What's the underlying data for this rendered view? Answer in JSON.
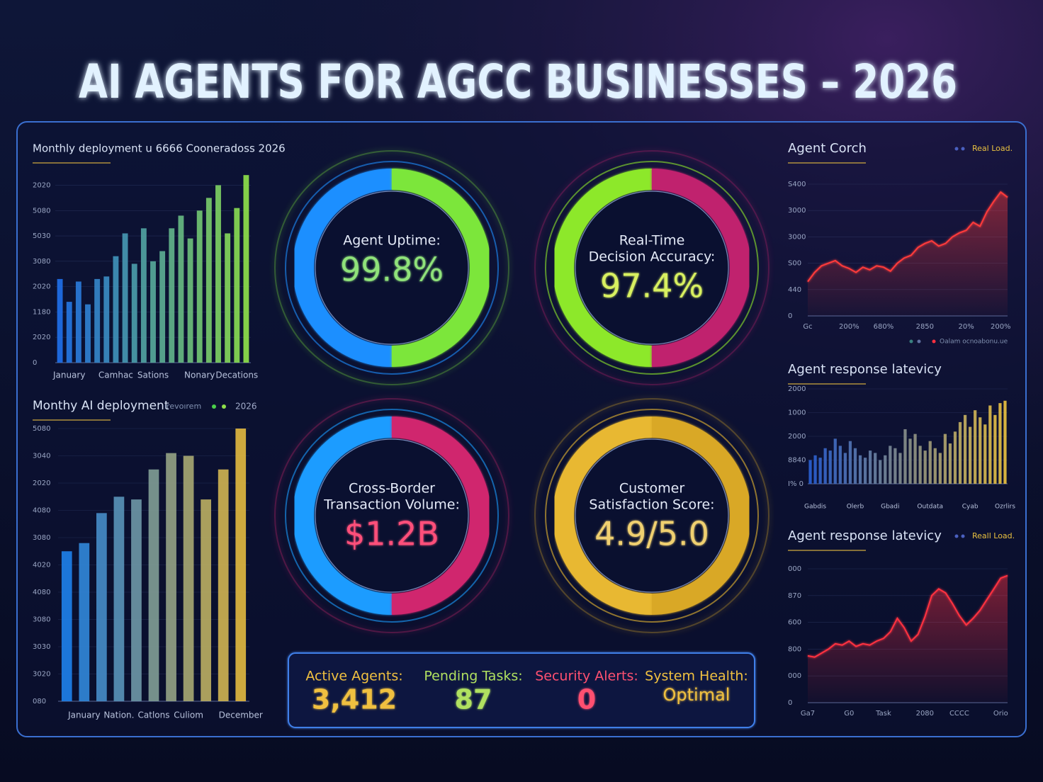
{
  "title": "AI AGENTS FOR AGCC BUSINESSES – 2026",
  "chart_data": [
    {
      "type": "bar",
      "title": "Monthly deployment u 6666 Cooneradoss 2026",
      "categories": [
        null,
        "January",
        null,
        null,
        null,
        null,
        "Camhac",
        null,
        null,
        null,
        "Sations",
        null,
        null,
        null,
        null,
        "Nonary",
        null,
        null,
        null,
        "Decations",
        null
      ],
      "values": [
        3.3,
        2.4,
        3.2,
        2.3,
        3.3,
        3.4,
        4.2,
        5.1,
        3.9,
        5.3,
        4.0,
        4.4,
        5.3,
        5.8,
        4.9,
        6.0,
        6.5,
        7.0,
        5.1,
        6.1,
        7.4
      ],
      "gradient": [
        "#1f6fe8",
        "#8ee04a"
      ],
      "ylim": [
        0,
        7.6
      ],
      "yticks": [
        0,
        {
          "value": 1,
          "label": "2020"
        },
        {
          "value": 2,
          "label": "1180"
        },
        {
          "value": 3,
          "label": "2020"
        },
        {
          "value": 4,
          "label": "3080"
        },
        {
          "value": 5,
          "label": "5030"
        },
        {
          "value": 6,
          "label": "5080"
        },
        {
          "value": 7,
          "label": "2020"
        }
      ]
    },
    {
      "type": "bar",
      "title": "Monthy AI deployment",
      "subtitle": "ırevoırem",
      "legend_label": "2026",
      "categories": [
        null,
        "January",
        null,
        "Nation.",
        null,
        "Catlons",
        null,
        "Culiom",
        null,
        null,
        "December"
      ],
      "values": [
        5.5,
        5.8,
        6.9,
        7.5,
        7.4,
        8.5,
        9.1,
        9.0,
        7.4,
        8.5,
        10.0
      ],
      "gradient": [
        "#1e7fe8",
        "#e0b640"
      ],
      "ylim": [
        0,
        10
      ],
      "yticks": [
        {
          "value": 0,
          "label": "080"
        },
        {
          "value": 1,
          "label": "3020"
        },
        {
          "value": 2,
          "label": "3030"
        },
        {
          "value": 3,
          "label": "3080"
        },
        {
          "value": 4,
          "label": "4080"
        },
        {
          "value": 5,
          "label": "4020"
        },
        {
          "value": 6,
          "label": "3080"
        },
        {
          "value": 7,
          "label": "4080"
        },
        {
          "value": 8,
          "label": "2020"
        },
        {
          "value": 9,
          "label": "3040"
        },
        {
          "value": 10,
          "label": "5080"
        }
      ]
    },
    {
      "type": "line",
      "title": "Agent Corch",
      "caption": "Oalam ocnoabonu.ue",
      "x": [
        0,
        1,
        2,
        3,
        4,
        5,
        6,
        7,
        8,
        9,
        10,
        11,
        12,
        13,
        14,
        15,
        16,
        17,
        18,
        19,
        20,
        21,
        22,
        23,
        24,
        25,
        26,
        27,
        28,
        29
      ],
      "series": [
        {
          "name": "Real Load.",
          "color": "#ff3a3a",
          "values": [
            1.3,
            1.65,
            1.9,
            2.0,
            2.1,
            1.9,
            1.8,
            1.65,
            1.85,
            1.75,
            1.9,
            1.85,
            1.7,
            2.0,
            2.2,
            2.3,
            2.6,
            2.75,
            2.85,
            2.65,
            2.75,
            3.0,
            3.15,
            3.25,
            3.55,
            3.4,
            3.95,
            4.35,
            4.7,
            4.5
          ]
        }
      ],
      "xlim": [
        0,
        29
      ],
      "xticks": [
        {
          "value": 0,
          "label": "Gc"
        },
        {
          "value": 6,
          "label": "200%"
        },
        {
          "value": 11,
          "label": "680%"
        },
        {
          "value": 17,
          "label": "2850"
        },
        {
          "value": 23,
          "label": "20%"
        },
        {
          "value": 28,
          "label": "200%"
        }
      ],
      "ylim": [
        0,
        5
      ],
      "yticks": [
        0,
        {
          "value": 1,
          "label": "440"
        },
        {
          "value": 2,
          "label": "S00"
        },
        {
          "value": 3,
          "label": "3000"
        },
        {
          "value": 4,
          "label": "3000"
        },
        {
          "value": 5,
          "label": "S400"
        }
      ]
    },
    {
      "type": "bar",
      "title": "Agent response latevicy",
      "categories": [
        null,
        "Gabdis",
        null,
        null,
        null,
        null,
        null,
        null,
        null,
        "Olerb",
        null,
        null,
        null,
        null,
        null,
        null,
        "Gbadi",
        null,
        null,
        null,
        null,
        null,
        null,
        null,
        "Outdata",
        null,
        null,
        null,
        null,
        null,
        null,
        null,
        "Cyab",
        null,
        null,
        null,
        null,
        null,
        null,
        "Ozrlirs"
      ],
      "values": [
        1.0,
        1.2,
        1.1,
        1.5,
        1.4,
        1.9,
        1.6,
        1.3,
        1.8,
        1.5,
        1.2,
        1.1,
        1.4,
        1.3,
        1.0,
        1.2,
        1.6,
        1.5,
        1.3,
        2.3,
        1.9,
        2.1,
        1.6,
        1.4,
        1.8,
        1.5,
        1.3,
        2.1,
        1.7,
        2.2,
        2.6,
        2.9,
        2.4,
        3.1,
        2.8,
        2.5,
        3.3,
        2.9,
        3.4,
        3.5
      ],
      "gradient": [
        "#2a5fd0",
        "#e8c040"
      ],
      "ylim": [
        0,
        4
      ],
      "yticks": [
        {
          "value": 0,
          "label": "I% 0"
        },
        {
          "value": 1,
          "label": "8840"
        },
        {
          "value": 2,
          "label": "2000"
        },
        {
          "value": 3,
          "label": "1000"
        },
        {
          "value": 4,
          "label": "2000"
        }
      ]
    },
    {
      "type": "line",
      "title": "Agent response latevicy",
      "x": [
        0,
        1,
        2,
        3,
        4,
        5,
        6,
        7,
        8,
        9,
        10,
        11,
        12,
        13,
        14,
        15,
        16,
        17,
        18,
        19,
        20,
        21,
        22,
        23,
        24,
        25,
        26,
        27,
        28,
        29
      ],
      "series": [
        {
          "name": "Reall Load.",
          "color": "#ff3040",
          "values": [
            1.75,
            1.7,
            1.85,
            2.0,
            2.2,
            2.15,
            2.3,
            2.1,
            2.2,
            2.15,
            2.3,
            2.4,
            2.65,
            3.15,
            2.8,
            2.3,
            2.55,
            3.2,
            4.0,
            4.25,
            4.1,
            3.7,
            3.25,
            2.9,
            3.15,
            3.45,
            3.85,
            4.25,
            4.65,
            4.75
          ]
        }
      ],
      "xlim": [
        0,
        29
      ],
      "xticks": [
        {
          "value": 0,
          "label": "Ga7"
        },
        {
          "value": 6,
          "label": "G0"
        },
        {
          "value": 11,
          "label": "Task"
        },
        {
          "value": 17,
          "label": "2080"
        },
        {
          "value": 22,
          "label": "CCCC"
        },
        {
          "value": 28,
          "label": "Orio"
        }
      ],
      "ylim": [
        0,
        5
      ],
      "yticks": [
        0,
        {
          "value": 1,
          "label": "000"
        },
        {
          "value": 2,
          "label": "800"
        },
        {
          "value": 3,
          "label": "600"
        },
        {
          "value": 4,
          "label": "870"
        },
        {
          "value": 5,
          "label": "000"
        }
      ]
    }
  ],
  "kpis": [
    {
      "label": [
        "Agent Uptime:"
      ],
      "value": "99.8%",
      "colors": [
        "#1e8fff",
        "#7ce63a"
      ],
      "text_color": "#8fe27a"
    },
    {
      "label": [
        "Real-Time",
        "Decision Accuracy:"
      ],
      "value": "97.4%",
      "colors": [
        "#8de82a",
        "#c0206e"
      ],
      "text_color": "#d8f060"
    },
    {
      "label": [
        "Cross-Border",
        "Transaction Volume:"
      ],
      "value": "$1.2B",
      "colors": [
        "#1a9cff",
        "#d0286e"
      ],
      "text_color": "#ff4f7a"
    },
    {
      "label": [
        "Customer",
        "Satisfaction Score:"
      ],
      "value": "4.9/5.0",
      "colors": [
        "#e8b830",
        "#d9a828"
      ],
      "text_color": "#f0d070"
    }
  ],
  "status": [
    {
      "label": "Active Agents:",
      "value": "3,412",
      "color": "#f0c040"
    },
    {
      "label": "Pending Tasks:",
      "value": "87",
      "color": "#b0e060"
    },
    {
      "label": "Security Alerts:",
      "value": "0",
      "color": "#ff5070"
    },
    {
      "label": "System Health:",
      "value": "Optimal",
      "color": "#f0c040"
    }
  ]
}
